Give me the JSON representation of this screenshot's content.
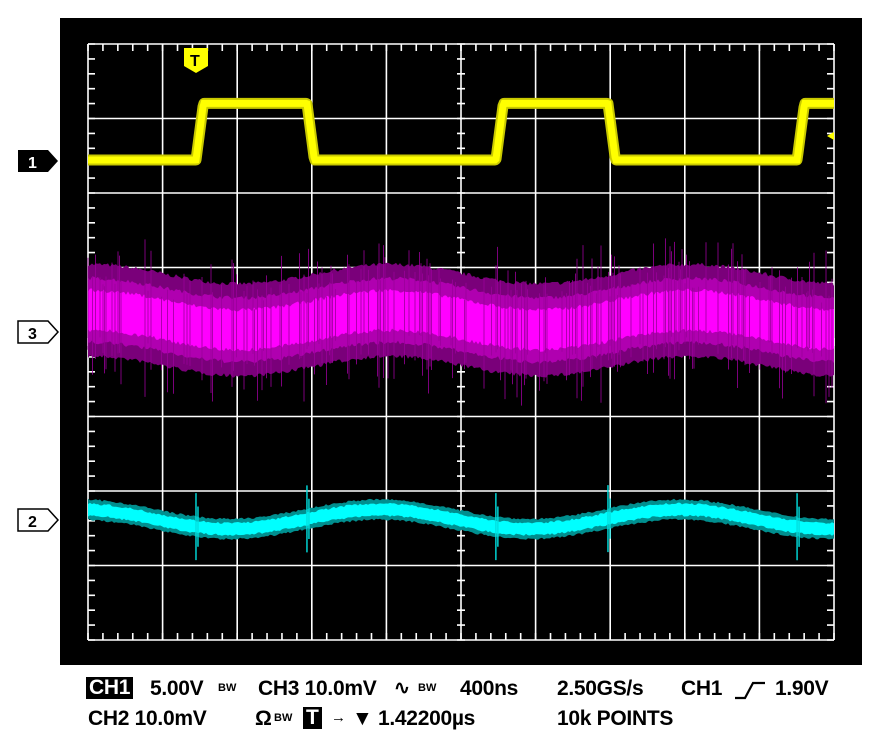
{
  "chart_data": {
    "type": "line",
    "title": "",
    "x_unit": "ns",
    "xlim": [
      0,
      4000
    ],
    "grid": true,
    "divisions": {
      "horizontal": 10,
      "vertical": 8
    },
    "channels": [
      {
        "id": "CH1",
        "marker": "1",
        "color": "#ffff00",
        "volts_per_div": 5.0,
        "unit": "V",
        "shape": "square",
        "low": 0.0,
        "high": 3.8,
        "rising_edges": [
          579,
          2187,
          3802
        ],
        "falling_edges": [
          1174,
          2788
        ]
      },
      {
        "id": "CH3",
        "marker": "3",
        "color": "#ff00ff",
        "volts_per_div": 10.0,
        "unit": "mV",
        "shape": "noisy-sine",
        "offset": 1.6,
        "amplitude": 1.3,
        "period": 1608,
        "peak_time": 1619
      },
      {
        "id": "CH2",
        "marker": "2",
        "color": "#00ffff",
        "volts_per_div": 10.0,
        "unit": "mV",
        "shape": "sine-with-spikes",
        "offset": 0.1,
        "amplitude": 1.3,
        "period": 1608,
        "peak_time": 1565,
        "spike_times": [
          579,
          1174,
          2187,
          2788,
          3802
        ],
        "spike_amplitude": 4.5
      }
    ],
    "trigger": {
      "marker": "T",
      "time": 579,
      "level_v": 1.9
    }
  },
  "readout": {
    "ch1_label": "CH1",
    "ch1_scale": "5.00V",
    "bw": "BW",
    "ch3_scale": "CH3 10.0mV",
    "ch3_coupling": "∿",
    "timebase": "400ns",
    "sample_rate": "2.50GS/s",
    "trigger_source": "CH1",
    "trigger_level": "1.90V",
    "ch2_scale": "CH2 10.0mV",
    "ch2_impedance": "Ω",
    "trigger_box": "T",
    "trigger_arrow": "→",
    "trigger_delay": "▼ 1.42200µs",
    "record_length": "10k POINTS"
  },
  "markers": {
    "ch1": "1",
    "ch3": "3",
    "ch2": "2",
    "trigger": "T"
  }
}
